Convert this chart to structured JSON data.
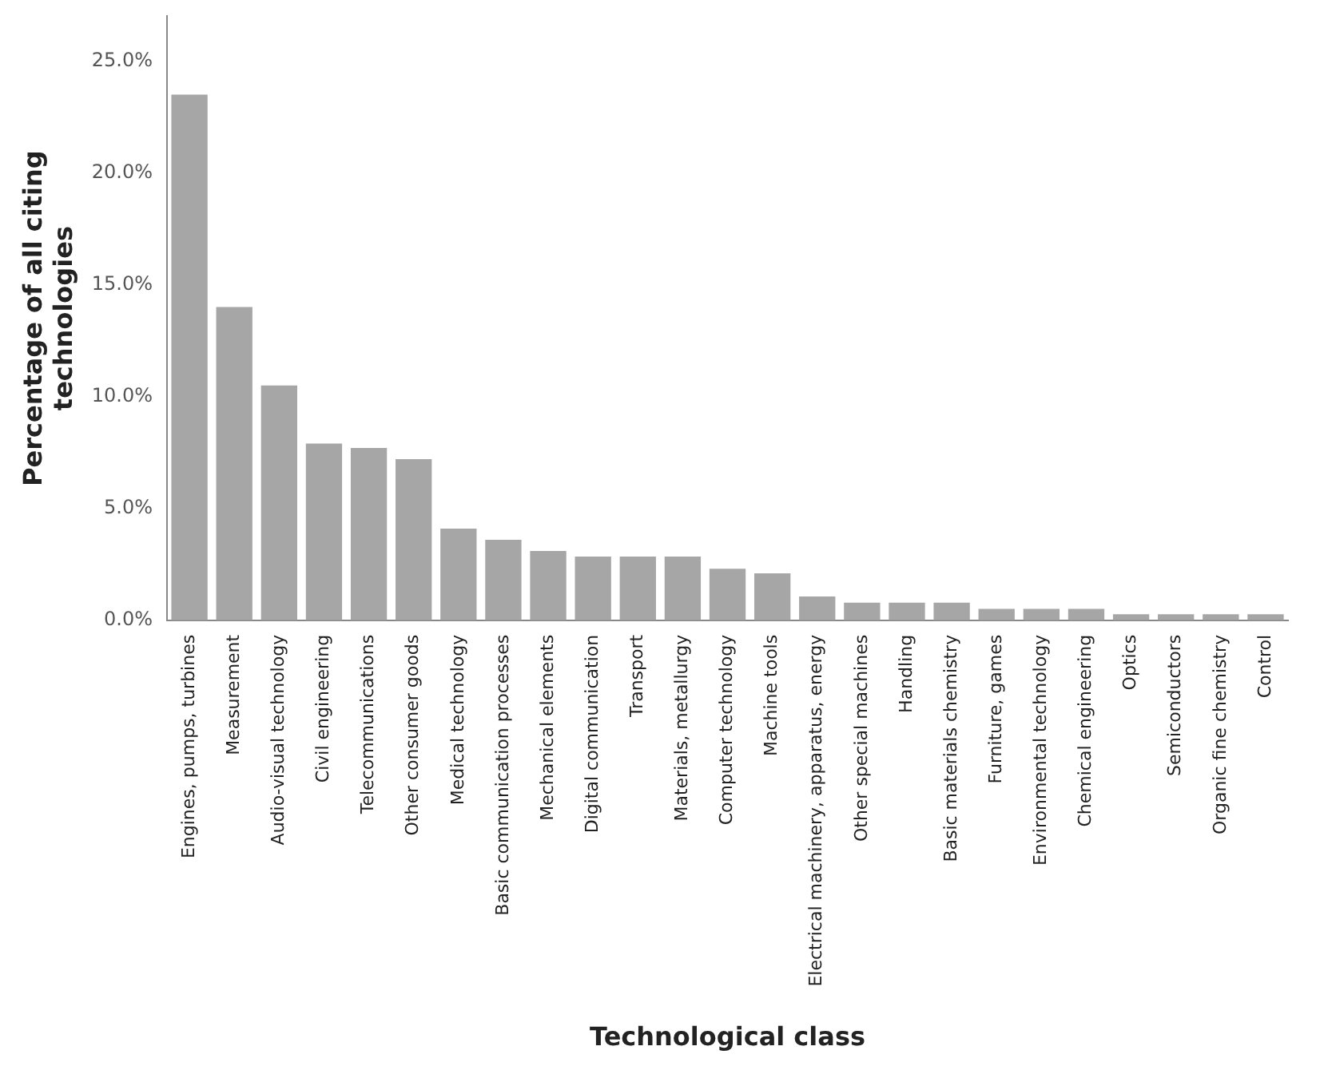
{
  "chart_data": {
    "type": "bar",
    "xlabel": "Technological class",
    "ylabel": "Percentage of all citing technologies",
    "categories": [
      "Engines, pumps, turbines",
      "Measurement",
      "Audio-visual technology",
      "Civil engineering",
      "Telecommunications",
      "Other consumer goods",
      "Medical technology",
      "Basic communication processes",
      "Mechanical elements",
      "Digital communication",
      "Transport",
      "Materials, metallurgy",
      "Computer technology",
      "Machine tools",
      "Electrical machinery, apparatus, energy",
      "Other special machines",
      "Handling",
      "Basic materials chemistry",
      "Furniture, games",
      "Environmental technology",
      "Chemical engineering",
      "Optics",
      "Semiconductors",
      "Organic fine chemistry",
      "Control"
    ],
    "values": [
      23.5,
      14.0,
      10.5,
      7.9,
      7.7,
      7.2,
      4.1,
      3.6,
      3.1,
      2.85,
      2.85,
      2.85,
      2.3,
      2.1,
      1.06,
      0.79,
      0.79,
      0.79,
      0.51,
      0.51,
      0.51,
      0.27,
      0.27,
      0.27,
      0.27
    ],
    "color": "#a6a6a6",
    "ylim": [
      0,
      27
    ],
    "yticks": [
      {
        "value": 0,
        "label": "0.0%"
      },
      {
        "value": 5,
        "label": "5.0%"
      },
      {
        "value": 10,
        "label": "10.0%"
      },
      {
        "value": 15,
        "label": "15.0%"
      },
      {
        "value": 20,
        "label": "20.0%"
      },
      {
        "value": 25,
        "label": "25.0%"
      }
    ],
    "grid": false,
    "legend": false
  }
}
